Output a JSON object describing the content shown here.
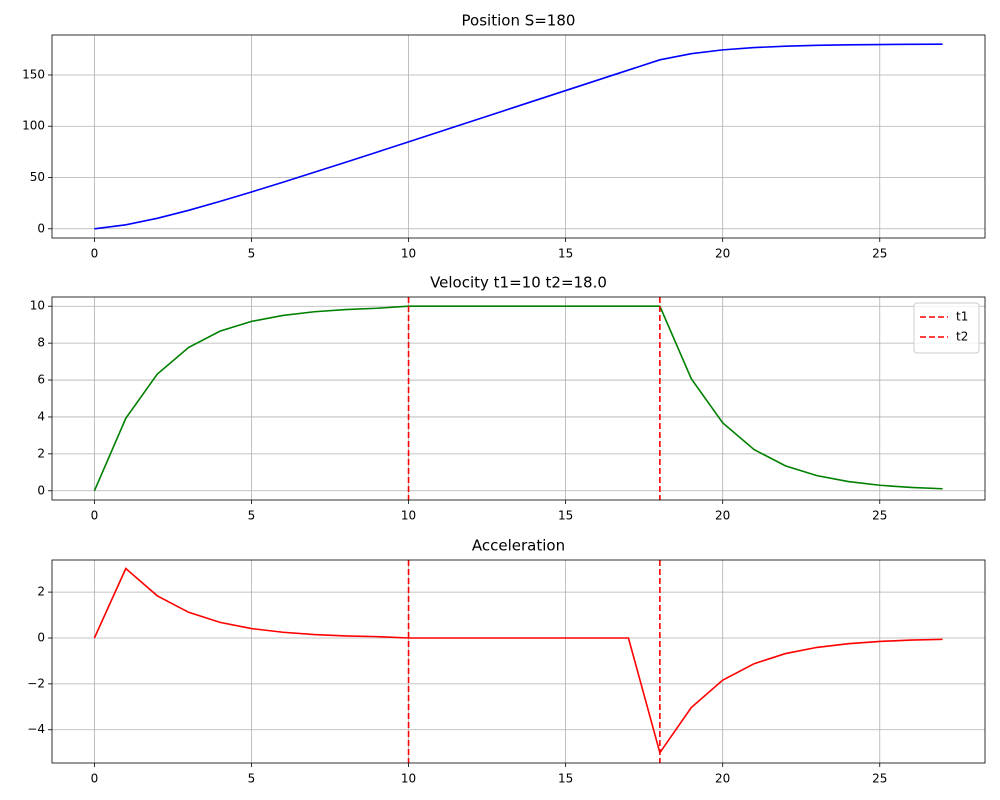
{
  "chart_data": [
    {
      "type": "line",
      "title": "Position  S=180",
      "color": "blue",
      "grid": true,
      "x": [
        0,
        1,
        2,
        3,
        4,
        5,
        6,
        7,
        8,
        9,
        10,
        11,
        12,
        13,
        14,
        15,
        16,
        17,
        18,
        19,
        20,
        21,
        22,
        23,
        24,
        25,
        26,
        27
      ],
      "values": [
        0,
        3.9,
        10.2,
        18.0,
        26.7,
        35.9,
        45.4,
        55.1,
        64.9,
        74.8,
        84.8,
        94.8,
        104.8,
        114.8,
        124.8,
        134.8,
        144.8,
        154.8,
        164.8,
        170.8,
        174.5,
        176.7,
        178.1,
        178.9,
        179.4,
        179.7,
        179.9,
        180.0
      ],
      "xlim": [
        -1.35,
        28.35
      ],
      "xticks": [
        0,
        5,
        10,
        15,
        20,
        25
      ],
      "ylim": [
        -9,
        189
      ],
      "yticks": [
        0,
        50,
        100,
        150
      ]
    },
    {
      "type": "line",
      "title": "Velocity  t1=10  t2=18.0",
      "color": "green",
      "grid": true,
      "x": [
        0,
        1,
        2,
        3,
        4,
        5,
        6,
        7,
        8,
        9,
        10,
        11,
        12,
        13,
        14,
        15,
        16,
        17,
        18,
        19,
        20,
        21,
        22,
        23,
        24,
        25,
        26,
        27
      ],
      "values": [
        0,
        3.93,
        6.32,
        7.77,
        8.65,
        9.18,
        9.5,
        9.7,
        9.82,
        9.89,
        10,
        10,
        10,
        10,
        10,
        10,
        10,
        10,
        10,
        6.07,
        3.68,
        2.23,
        1.35,
        0.82,
        0.5,
        0.3,
        0.18,
        0.11
      ],
      "xlim": [
        -1.35,
        28.35
      ],
      "xticks": [
        0,
        5,
        10,
        15,
        20,
        25
      ],
      "ylim": [
        -0.5,
        10.5
      ],
      "yticks": [
        0,
        2,
        4,
        6,
        8,
        10
      ],
      "vlines": [
        {
          "name": "t1",
          "x": 10,
          "color": "red"
        },
        {
          "name": "t2",
          "x": 18,
          "color": "red"
        }
      ],
      "legend": "upper right"
    },
    {
      "type": "line",
      "title": "Acceleration",
      "color": "red",
      "grid": true,
      "x": [
        0,
        1,
        2,
        3,
        4,
        5,
        6,
        7,
        8,
        9,
        10,
        11,
        12,
        13,
        14,
        15,
        16,
        17,
        18,
        19,
        20,
        21,
        22,
        23,
        24,
        25,
        26,
        27
      ],
      "values": [
        0,
        3.03,
        1.84,
        1.12,
        0.68,
        0.41,
        0.25,
        0.15,
        0.09,
        0.06,
        0,
        0,
        0,
        0,
        0,
        0,
        0,
        0,
        -5,
        -3.03,
        -1.84,
        -1.12,
        -0.68,
        -0.41,
        -0.25,
        -0.15,
        -0.09,
        -0.06
      ],
      "xlim": [
        -1.35,
        28.35
      ],
      "xticks": [
        0,
        5,
        10,
        15,
        20,
        25
      ],
      "ylim": [
        -5.45,
        3.4
      ],
      "yticks": [
        {
          "value": -4,
          "label": "−4"
        },
        {
          "value": -2,
          "label": "−2"
        },
        0,
        2
      ],
      "vlines": [
        {
          "x": 10,
          "color": "red"
        },
        {
          "x": 18,
          "color": "red"
        }
      ]
    }
  ]
}
